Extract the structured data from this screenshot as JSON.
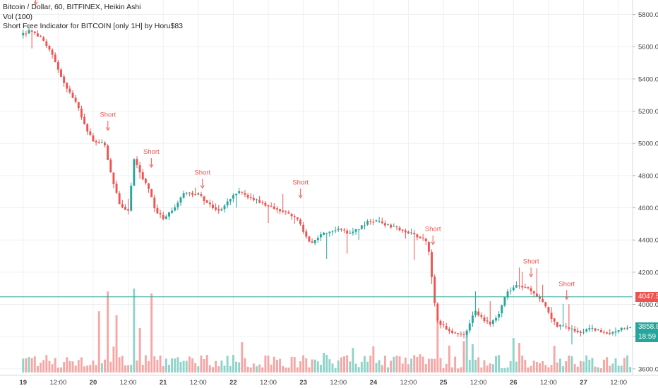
{
  "chart_data": {
    "type": "candlestick",
    "title": "Bitcoin / Dollar, 60, BITFINEX, Heikin Ashi",
    "indicators": [
      "Vol (100)",
      "Short Free Indicator for BITCOIN [only 1H] by Horu$83"
    ],
    "y_ticks": [
      "5800.0",
      "5600.0",
      "5400.0",
      "5200.0",
      "5000.0",
      "4800.0",
      "4600.0",
      "4400.0",
      "4200.0",
      "4000.0",
      "3800.0",
      "3600.0"
    ],
    "y_tick_values": [
      5800,
      5600,
      5400,
      5200,
      5000,
      4800,
      4600,
      4400,
      4200,
      4000,
      3800,
      3600
    ],
    "x_ticks": [
      "19",
      "12:00",
      "20",
      "12:00",
      "21",
      "12:00",
      "22",
      "12:00",
      "23",
      "12:00",
      "24",
      "12:00",
      "25",
      "12:00",
      "26",
      "12:00",
      "27",
      "12:00"
    ],
    "x_tick_days": [
      0,
      0.5,
      1,
      1.5,
      2,
      2.5,
      3,
      3.5,
      4,
      4.5,
      5,
      5.5,
      6,
      6.5,
      7,
      7.5,
      8,
      8.5
    ],
    "ylim": [
      3560,
      5890
    ],
    "xlim_days": [
      -0.33,
      8.7
    ],
    "current_price": "4047.5",
    "current_price_value": 4047.5,
    "last_price": "3858.8",
    "last_price_value": 3858.8,
    "countdown": "18:59",
    "short_label": "Short",
    "short_signals": [
      {
        "day": 0.18,
        "price": 5840
      },
      {
        "day": 1.21,
        "price": 5060
      },
      {
        "day": 1.83,
        "price": 4830
      },
      {
        "day": 2.56,
        "price": 4700
      },
      {
        "day": 3.96,
        "price": 4640
      },
      {
        "day": 5.85,
        "price": 4350
      },
      {
        "day": 7.25,
        "price": 4150
      },
      {
        "day": 7.76,
        "price": 4010
      }
    ],
    "price_path": [
      [
        0,
        5670
      ],
      [
        0.15,
        5700
      ],
      [
        0.3,
        5650
      ],
      [
        0.45,
        5560
      ],
      [
        0.55,
        5450
      ],
      [
        0.65,
        5350
      ],
      [
        0.8,
        5250
      ],
      [
        0.95,
        5080
      ],
      [
        1.05,
        5010
      ],
      [
        1.2,
        5000
      ],
      [
        1.3,
        4800
      ],
      [
        1.42,
        4620
      ],
      [
        1.55,
        4580
      ],
      [
        1.62,
        4910
      ],
      [
        1.73,
        4800
      ],
      [
        1.85,
        4700
      ],
      [
        1.93,
        4580
      ],
      [
        2.05,
        4530
      ],
      [
        2.2,
        4600
      ],
      [
        2.35,
        4700
      ],
      [
        2.45,
        4690
      ],
      [
        2.55,
        4680
      ],
      [
        2.7,
        4620
      ],
      [
        2.85,
        4580
      ],
      [
        3.0,
        4660
      ],
      [
        3.1,
        4700
      ],
      [
        3.3,
        4660
      ],
      [
        3.5,
        4620
      ],
      [
        3.75,
        4580
      ],
      [
        3.95,
        4530
      ],
      [
        4.05,
        4450
      ],
      [
        4.15,
        4370
      ],
      [
        4.25,
        4420
      ],
      [
        4.4,
        4450
      ],
      [
        4.55,
        4470
      ],
      [
        4.7,
        4440
      ],
      [
        4.8,
        4460
      ],
      [
        4.95,
        4510
      ],
      [
        5.05,
        4520
      ],
      [
        5.2,
        4500
      ],
      [
        5.4,
        4470
      ],
      [
        5.6,
        4440
      ],
      [
        5.78,
        4400
      ],
      [
        5.85,
        4300
      ],
      [
        5.9,
        4050
      ],
      [
        5.95,
        3900
      ],
      [
        6.05,
        3860
      ],
      [
        6.2,
        3820
      ],
      [
        6.35,
        3810
      ],
      [
        6.48,
        3960
      ],
      [
        6.6,
        3910
      ],
      [
        6.72,
        3880
      ],
      [
        6.85,
        3960
      ],
      [
        6.95,
        4080
      ],
      [
        7.1,
        4120
      ],
      [
        7.25,
        4100
      ],
      [
        7.3,
        4080
      ],
      [
        7.45,
        4020
      ],
      [
        7.55,
        3940
      ],
      [
        7.65,
        3870
      ],
      [
        7.75,
        3860
      ],
      [
        7.85,
        3850
      ],
      [
        8.0,
        3830
      ],
      [
        8.15,
        3850
      ],
      [
        8.3,
        3830
      ],
      [
        8.45,
        3820
      ],
      [
        8.6,
        3850
      ],
      [
        8.7,
        3860
      ]
    ],
    "volume_spikes": [
      {
        "day": 1.1,
        "vol": 0.62
      },
      {
        "day": 1.22,
        "vol": 0.82
      },
      {
        "day": 1.35,
        "vol": 0.58
      },
      {
        "day": 1.58,
        "vol": 0.85
      },
      {
        "day": 1.82,
        "vol": 0.8
      },
      {
        "day": 1.65,
        "vol": 0.45
      },
      {
        "day": 5.9,
        "vol": 0.55
      },
      {
        "day": 6.35,
        "vol": 0.42
      },
      {
        "day": 7.1,
        "vol": 0.3
      },
      {
        "day": 7.6,
        "vol": 0.27
      }
    ],
    "colors": {
      "up": "#26a69a",
      "down": "#ef5350",
      "vol_up": "#8fd3c9",
      "vol_down": "#f4a7a5",
      "grid": "#edf0f3",
      "axis_text": "#444444",
      "price_line": "#26a69a",
      "current_tag": "#ef5350",
      "last_tag": "#26a69a",
      "short_text": "#ef5350"
    }
  }
}
